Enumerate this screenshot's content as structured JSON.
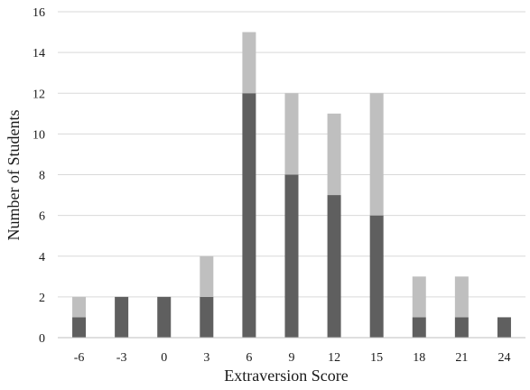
{
  "chart_data": {
    "type": "bar",
    "stacked": true,
    "title": "",
    "xlabel": "Extraversion Score",
    "ylabel": "Number of Students",
    "categories": [
      "-6",
      "-3",
      "0",
      "3",
      "6",
      "9",
      "12",
      "15",
      "18",
      "21",
      "24"
    ],
    "series": [
      {
        "color": "#5f5f5f",
        "values": [
          1,
          2,
          2,
          2,
          12,
          8,
          7,
          6,
          1,
          1,
          1
        ]
      },
      {
        "color": "#bfbfbf",
        "values": [
          1,
          0,
          0,
          2,
          3,
          4,
          4,
          6,
          2,
          2,
          0
        ]
      }
    ],
    "ylim": [
      0,
      16
    ],
    "yticks": [
      0,
      2,
      4,
      6,
      8,
      10,
      12,
      14,
      16
    ],
    "grid": true,
    "legend": "none"
  }
}
